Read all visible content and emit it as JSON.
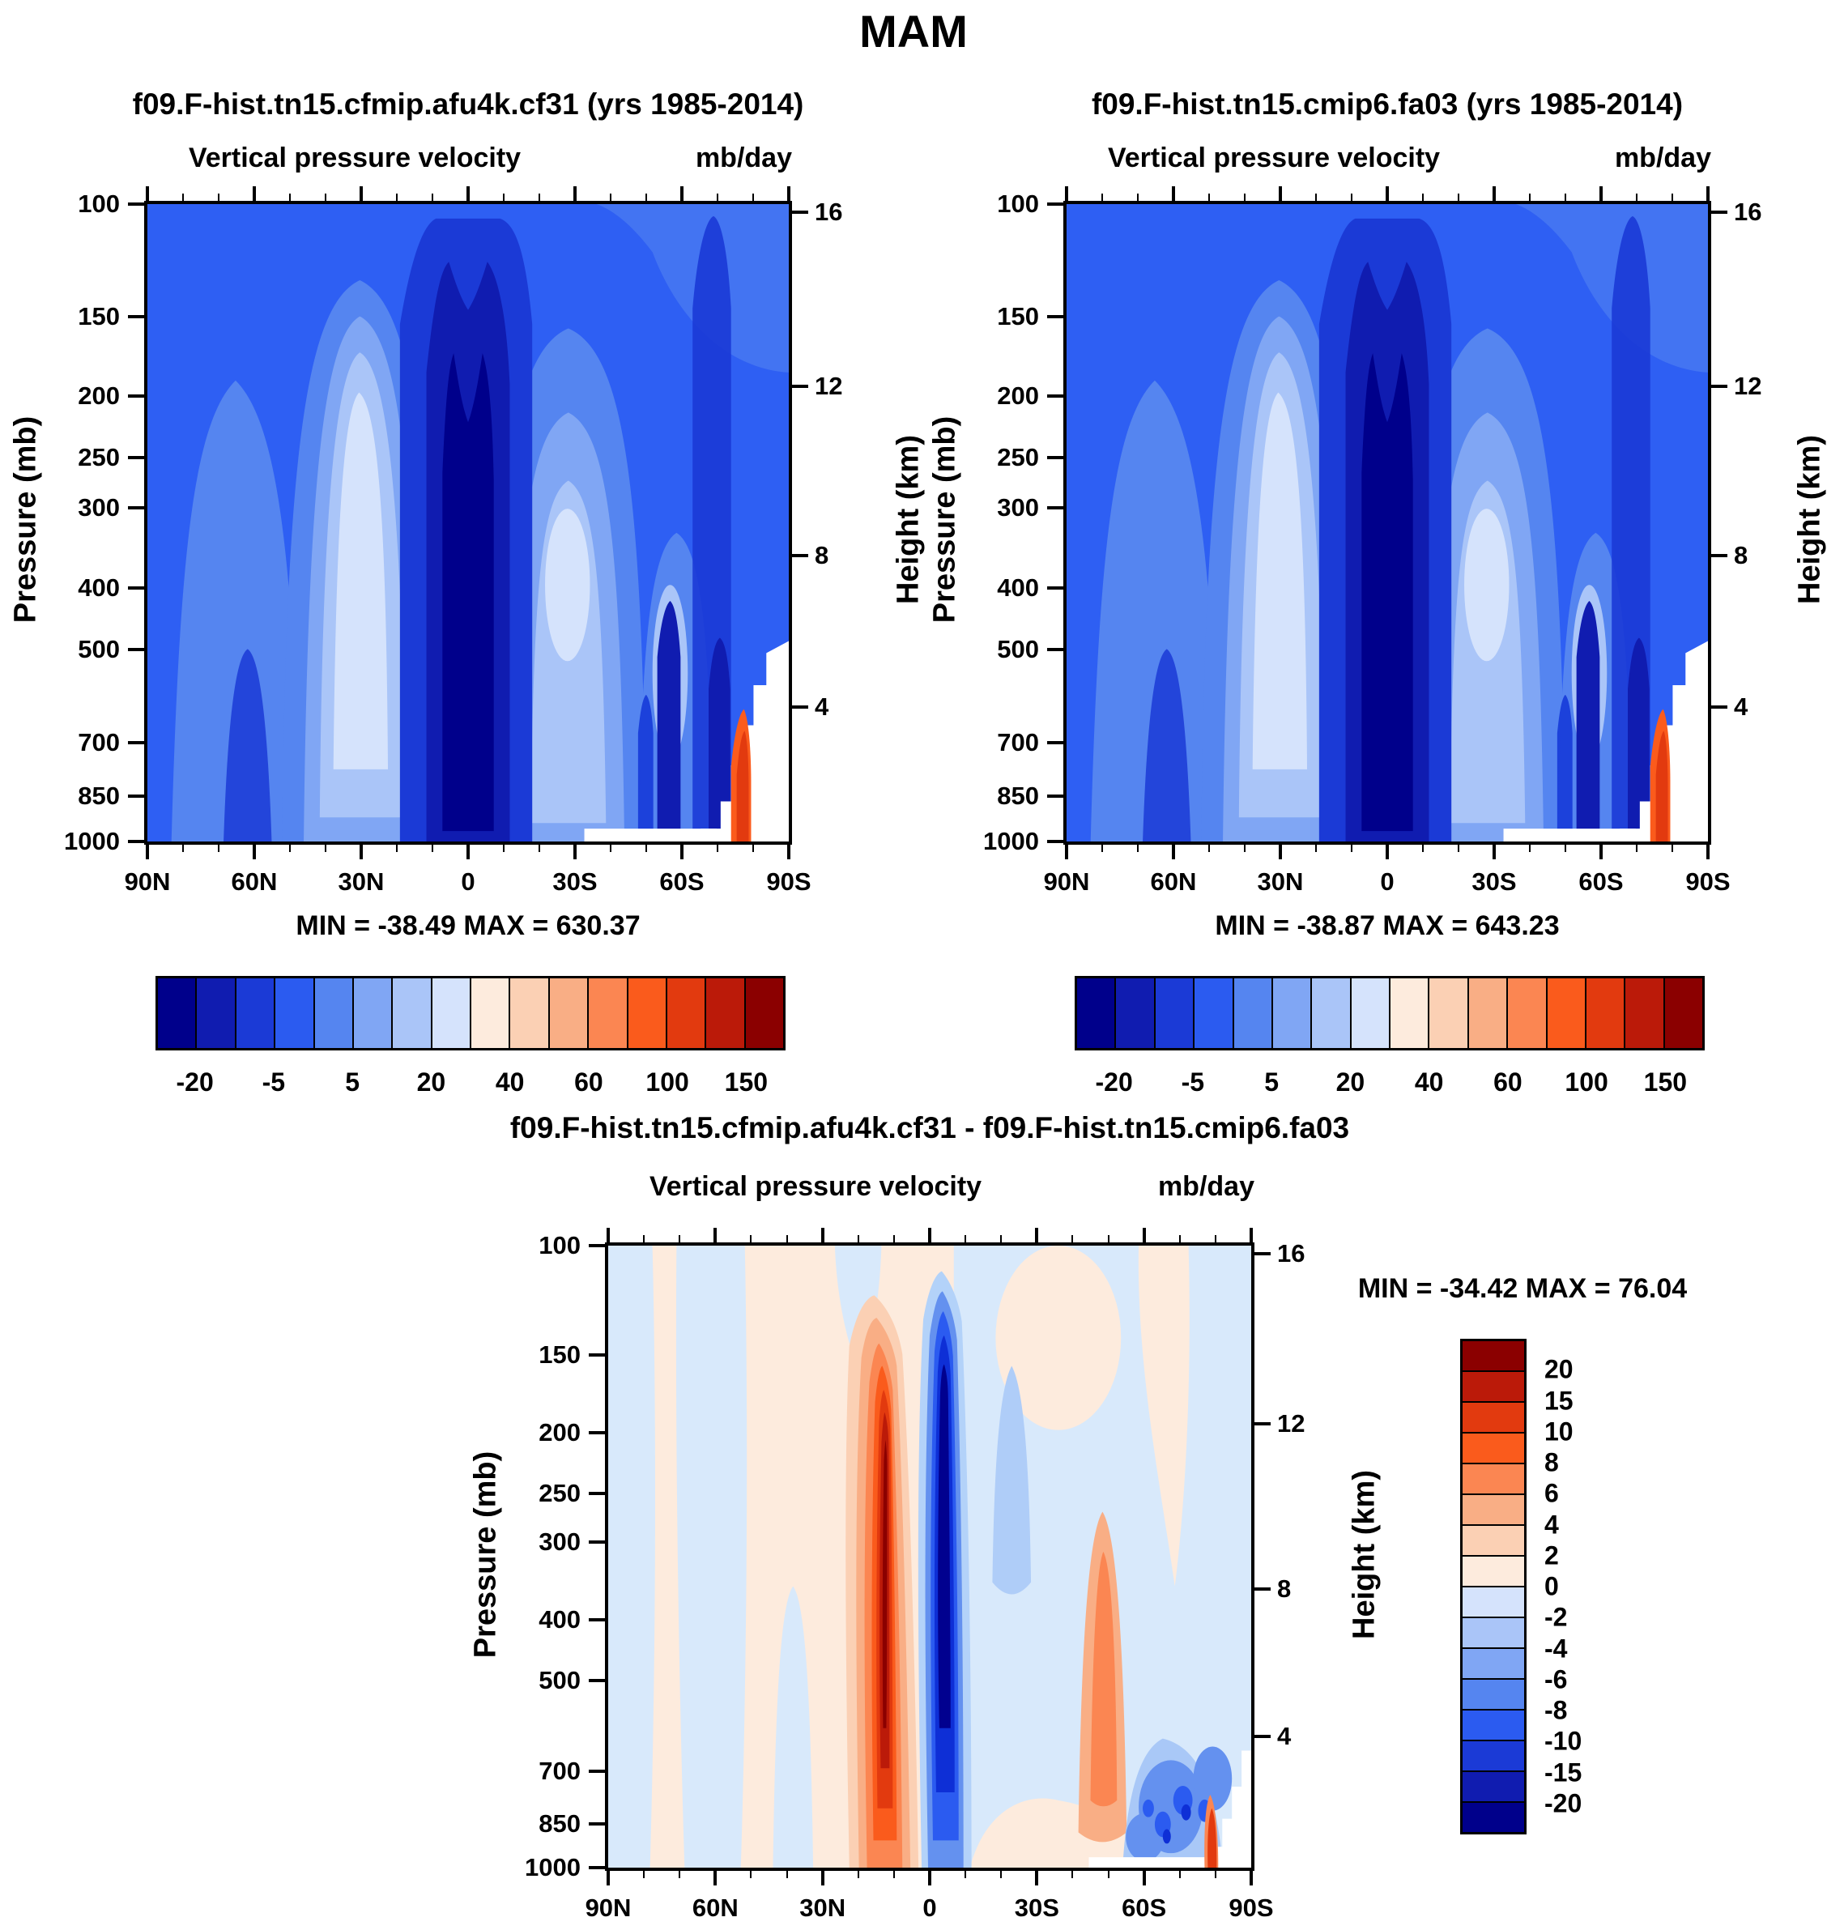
{
  "title": "MAM",
  "panels": {
    "top_left": {
      "title": "f09.F-hist.tn15.cfmip.afu4k.cf31 (yrs 1985-2014)",
      "field_label": "Vertical pressure velocity",
      "units": "mb/day",
      "min_max": "MIN = -38.49  MAX = 630.37"
    },
    "top_right": {
      "title": "f09.F-hist.tn15.cmip6.fa03 (yrs 1985-2014)",
      "field_label": "Vertical pressure velocity",
      "units": "mb/day",
      "min_max": "MIN = -38.87  MAX = 643.23"
    },
    "difference": {
      "title": "f09.F-hist.tn15.cfmip.afu4k.cf31 - f09.F-hist.tn15.cmip6.fa03",
      "field_label": "Vertical pressure velocity",
      "units": "mb/day",
      "min_max": "MIN = -34.42  MAX =  76.04"
    }
  },
  "axes": {
    "pressure_label": "Pressure (mb)",
    "height_label": "Height (km)",
    "pressure_ticks": [
      "100",
      "150",
      "200",
      "250",
      "300",
      "400",
      "500",
      "700",
      "850",
      "1000"
    ],
    "height_ticks": [
      "16",
      "12",
      "8",
      "4"
    ],
    "latitude_ticks": [
      "90N",
      "60N",
      "30N",
      "0",
      "30S",
      "60S",
      "90S"
    ]
  },
  "colorbars": {
    "palette_blue_to_red": [
      "#00008B",
      "#101CB0",
      "#1B3AD6",
      "#2B5BF0",
      "#5585F0",
      "#80A6F4",
      "#AAC5F8",
      "#D5E3FC",
      "#FDEBDD",
      "#FBD0B4",
      "#F9AE85",
      "#FB8652",
      "#FA5B1C",
      "#E23A0F",
      "#BB1A09",
      "#8B0000"
    ],
    "top": {
      "labels": [
        "-20",
        "-5",
        "5",
        "20",
        "40",
        "60",
        "100",
        "150"
      ],
      "label_boundaries": [
        1,
        3,
        5,
        7,
        9,
        11,
        13,
        15
      ],
      "levels": [
        -20,
        -10,
        -5,
        0,
        5,
        10,
        20,
        30,
        40,
        50,
        60,
        80,
        100,
        125,
        150
      ]
    },
    "difference": {
      "labels": [
        "20",
        "15",
        "10",
        "8",
        "6",
        "4",
        "2",
        "0",
        "-2",
        "-4",
        "-6",
        "-8",
        "-10",
        "-15",
        "-20"
      ],
      "levels": [
        20,
        15,
        10,
        8,
        6,
        4,
        2,
        0,
        -2,
        -4,
        -6,
        -8,
        -10,
        -15,
        -20
      ]
    }
  },
  "chart_data": [
    {
      "type": "heatmap",
      "variant": "filled-contour latitude-pressure section",
      "title": "f09.F-hist.tn15.cfmip.afu4k.cf31 (yrs 1985-2014)",
      "subtitle": "Vertical pressure velocity",
      "units": "mb/day",
      "x": {
        "label": "latitude",
        "ticks": [
          "90N",
          "60N",
          "30N",
          "0",
          "30S",
          "60S",
          "90S"
        ]
      },
      "y": {
        "label": "Pressure (mb)",
        "scale": "log",
        "direction": "down",
        "ticks": [
          100,
          150,
          200,
          250,
          300,
          400,
          500,
          700,
          850,
          1000
        ]
      },
      "y2": {
        "label": "Height (km)",
        "ticks": [
          16,
          12,
          8,
          4
        ]
      },
      "contour_levels": [
        -20,
        -10,
        -5,
        0,
        5,
        10,
        20,
        30,
        40,
        50,
        60,
        80,
        100,
        125,
        150
      ],
      "min": -38.49,
      "max": 630.37,
      "legend_position": "horizontal colorbar below plot",
      "features": [
        "narrow dark-blue column (< -20 mb/day) of strong upward motion near the equator at all levels, double-peaked near 150 mb",
        "pale blue subsidence columns (0 to 10 mb/day) near 20-30N and 15-30S in the mid troposphere",
        "uniform blue background (-5 to 0 mb/day) over mid and high latitudes",
        "dark blue storm-track band near 55-70S and streaks below 500 mb",
        "orange-red maximum (> 100 mb/day) hugging the Antarctic slope near 80-88S below 600 mb",
        "white terrain mask wedge from ~78S to 90S below ~500 mb"
      ]
    },
    {
      "type": "heatmap",
      "variant": "filled-contour latitude-pressure section",
      "title": "f09.F-hist.tn15.cmip6.fa03 (yrs 1985-2014)",
      "subtitle": "Vertical pressure velocity",
      "units": "mb/day",
      "x": {
        "label": "latitude",
        "ticks": [
          "90N",
          "60N",
          "30N",
          "0",
          "30S",
          "60S",
          "90S"
        ]
      },
      "y": {
        "label": "Pressure (mb)",
        "scale": "log",
        "direction": "down",
        "ticks": [
          100,
          150,
          200,
          250,
          300,
          400,
          500,
          700,
          850,
          1000
        ]
      },
      "y2": {
        "label": "Height (km)",
        "ticks": [
          16,
          12,
          8,
          4
        ]
      },
      "contour_levels": [
        -20,
        -10,
        -5,
        0,
        5,
        10,
        20,
        30,
        40,
        50,
        60,
        80,
        100,
        125,
        150
      ],
      "min": -38.87,
      "max": 643.23,
      "legend_position": "horizontal colorbar below plot",
      "features": [
        "pattern nearly identical to the left panel: equatorial dark-blue updraft column, subtropical pale subsidence columns, Antarctic orange-red maximum and white terrain wedge"
      ]
    },
    {
      "type": "heatmap",
      "variant": "filled-contour difference (left panel minus right panel)",
      "title": "f09.F-hist.tn15.cfmip.afu4k.cf31 - f09.F-hist.tn15.cmip6.fa03",
      "subtitle": "Vertical pressure velocity",
      "units": "mb/day",
      "x": {
        "label": "latitude",
        "ticks": [
          "90N",
          "60N",
          "30N",
          "0",
          "30S",
          "60S",
          "90S"
        ]
      },
      "y": {
        "label": "Pressure (mb)",
        "scale": "log",
        "direction": "down",
        "ticks": [
          100,
          150,
          200,
          250,
          300,
          400,
          500,
          700,
          850,
          1000
        ]
      },
      "y2": {
        "label": "Height (km)",
        "ticks": [
          16,
          12,
          8,
          4
        ]
      },
      "contour_levels": [
        -20,
        -15,
        -10,
        -8,
        -6,
        -4,
        -2,
        0,
        2,
        4,
        6,
        8,
        10,
        15,
        20
      ],
      "min": -34.42,
      "max": 76.04,
      "legend_position": "vertical colorbar right of plot",
      "features": [
        "equatorial dipole: strong positive column (> 20 mb/day, dark red core) near 5-10N and strong negative column (< -20 mb/day, dark blue core) near 0-5S through the whole troposphere",
        "weak positive background (0 to 2) over northern mid-latitudes with pale-blue stripes near 90N and 55-70N",
        "weak negative background (-2 to 0) over most of the southern hemisphere",
        "secondary positive streak (2 to 6) near 45S in the mid and lower troposphere",
        "noisy negative patches below 700 mb between 60S and 85S with a small positive spike near 87S",
        "white terrain mask notch near the South Pole below ~700 mb"
      ]
    }
  ]
}
